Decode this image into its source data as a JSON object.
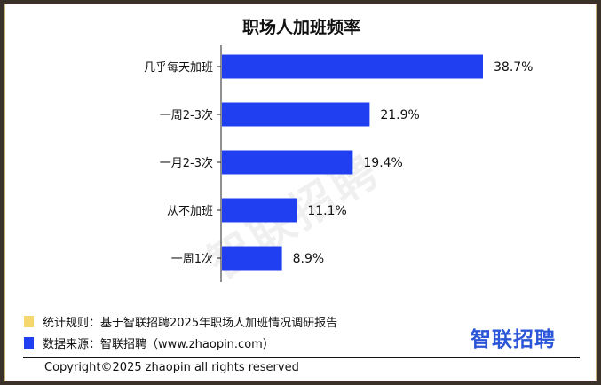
{
  "chart_data": {
    "type": "bar",
    "orientation": "horizontal",
    "title": "职场人加班频率",
    "categories": [
      "几乎每天加班",
      "一周2-3次",
      "一月2-3次",
      "从不加班",
      "一周1次"
    ],
    "values": [
      38.7,
      21.9,
      19.4,
      11.1,
      8.9
    ],
    "data_labels": [
      "38.7%",
      "21.9%",
      "19.4%",
      "11.1%",
      "8.9%"
    ],
    "xlim": [
      0,
      40
    ],
    "grid": false,
    "bar_color": "#1f3ff0"
  },
  "watermark": "智联招聘",
  "notes": [
    {
      "text": "统计规则：基于智联招聘2025年职场人加班情况调研报告",
      "swatch_color": "#f5d76e"
    },
    {
      "text": "数据来源：智联招聘（www.zhaopin.com）",
      "swatch_color": "#1f3ff0"
    }
  ],
  "logo": "智联招聘",
  "copyright": "Copyright©2025 zhaopin all rights reserved"
}
